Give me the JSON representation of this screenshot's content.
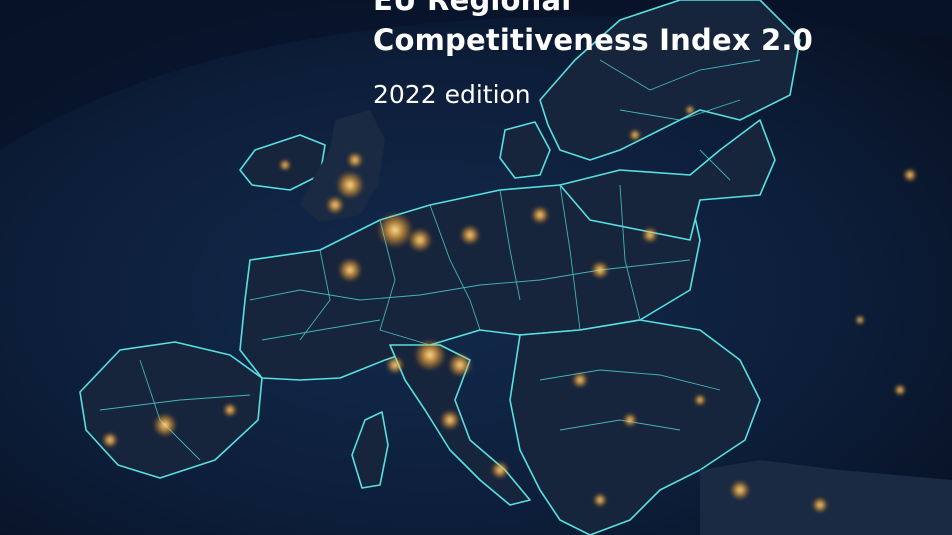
{
  "cover": {
    "title_line_1": "EU Regional",
    "title_line_2": "Competitiveness Index 2.0",
    "edition": "2022 edition"
  },
  "colors": {
    "sky": "#0b1a33",
    "ocean": "#0d2444",
    "land": "#15233a",
    "border_glow": "#5fe6e6",
    "city_lights": "#ffb845"
  }
}
